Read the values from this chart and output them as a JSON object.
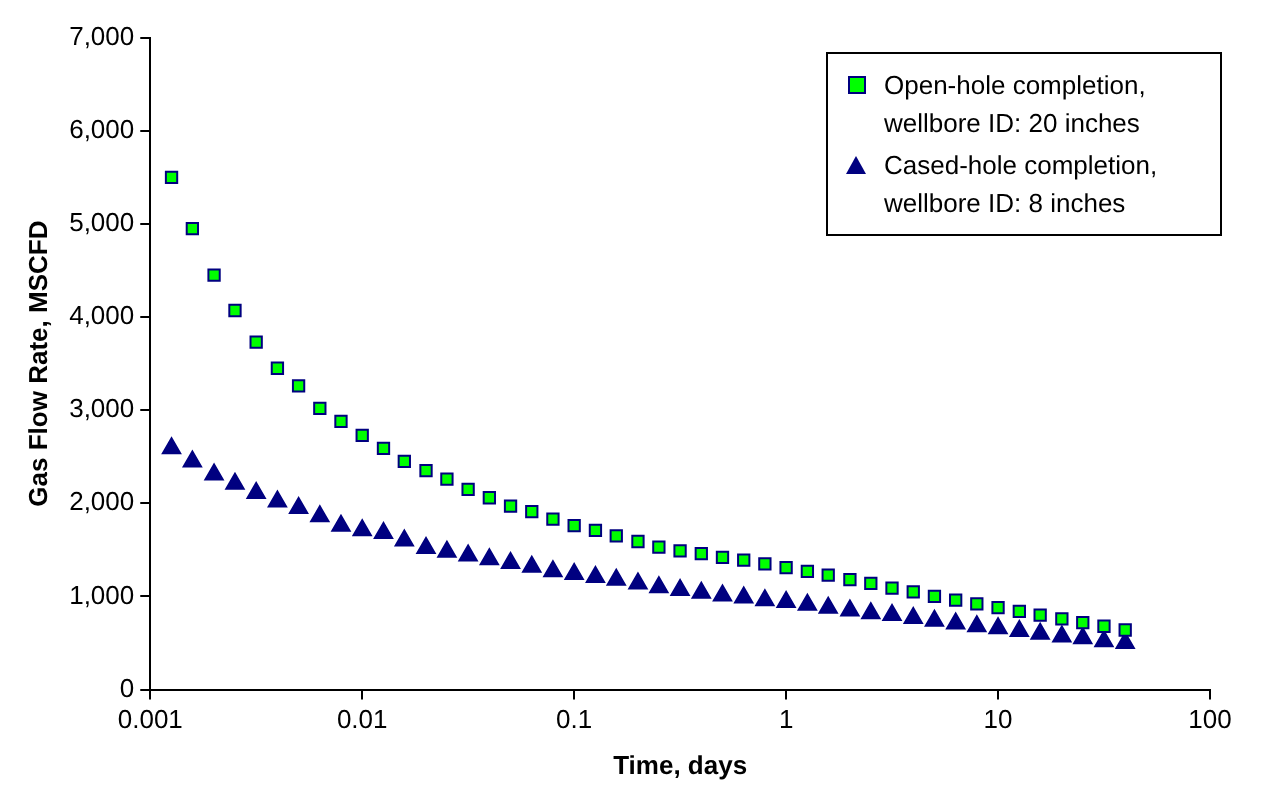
{
  "chart_data": {
    "type": "scatter",
    "xlabel": "Time, days",
    "ylabel": "Gas Flow Rate, MSCFD",
    "log": "x",
    "x": [
      0.00126,
      0.00158,
      0.002,
      0.00251,
      0.00316,
      0.00398,
      0.00501,
      0.00631,
      0.00794,
      0.01,
      0.0126,
      0.0158,
      0.02,
      0.0251,
      0.0316,
      0.0398,
      0.0501,
      0.0631,
      0.0794,
      0.1,
      0.126,
      0.158,
      0.2,
      0.251,
      0.316,
      0.398,
      0.501,
      0.631,
      0.794,
      1,
      1.26,
      1.58,
      2,
      2.51,
      3.16,
      3.98,
      5.01,
      6.31,
      7.94,
      10,
      12.6,
      15.8,
      20,
      25.1,
      31.6,
      39.8
    ],
    "xlim": [
      0.001,
      100
    ],
    "xticks": [
      0.001,
      0.01,
      0.1,
      1,
      10,
      100
    ],
    "ylim": [
      0,
      7000
    ],
    "yticks": [
      0,
      {
        "value": 1000,
        "label": "1,000"
      },
      {
        "value": 2000,
        "label": "2,000"
      },
      {
        "value": 3000,
        "label": "3,000"
      },
      {
        "value": 4000,
        "label": "4,000"
      },
      {
        "value": 5000,
        "label": "5,000"
      },
      {
        "value": 6000,
        "label": "6,000"
      },
      {
        "value": 7000,
        "label": "7,000"
      }
    ],
    "grid": false,
    "legend": "top right",
    "series": [
      {
        "name": "Open-hole completion, wellbore ID: 20 inches",
        "color": "#00ff00",
        "marker": "square",
        "values": [
          5500,
          4950,
          4450,
          4070,
          3730,
          3450,
          3260,
          3020,
          2880,
          2730,
          2590,
          2450,
          2350,
          2260,
          2150,
          2060,
          1970,
          1910,
          1830,
          1760,
          1710,
          1650,
          1590,
          1530,
          1490,
          1460,
          1420,
          1390,
          1350,
          1310,
          1270,
          1230,
          1180,
          1140,
          1090,
          1050,
          1000,
          960,
          920,
          880,
          840,
          800,
          760,
          720,
          680,
          640
        ]
      },
      {
        "name": "Cased-hole completion, wellbore ID: 8 inches",
        "color": "#000080",
        "marker": "triangle",
        "values": [
          2590,
          2450,
          2310,
          2210,
          2110,
          2020,
          1950,
          1860,
          1760,
          1710,
          1680,
          1600,
          1520,
          1480,
          1440,
          1400,
          1360,
          1320,
          1270,
          1240,
          1210,
          1180,
          1140,
          1100,
          1070,
          1040,
          1010,
          990,
          960,
          940,
          910,
          880,
          850,
          820,
          800,
          770,
          740,
          710,
          680,
          660,
          630,
          600,
          570,
          550,
          520,
          500
        ]
      }
    ]
  }
}
